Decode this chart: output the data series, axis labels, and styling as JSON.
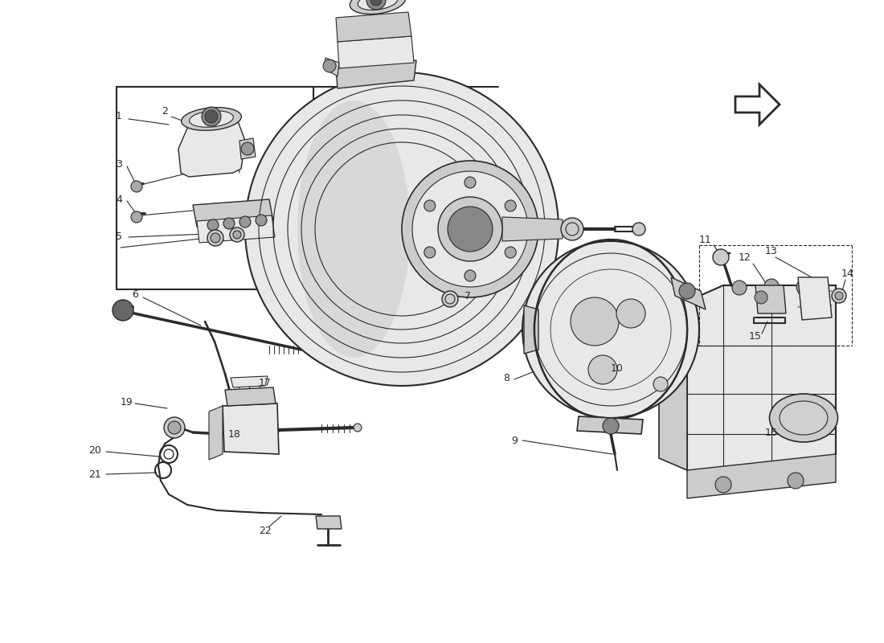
{
  "background_color": "#ffffff",
  "line_color": "#2a2a2a",
  "fig_width": 11.0,
  "fig_height": 8.0,
  "dpi": 100,
  "gray_light": "#e8e8e8",
  "gray_mid": "#cccccc",
  "gray_dark": "#aaaaaa"
}
